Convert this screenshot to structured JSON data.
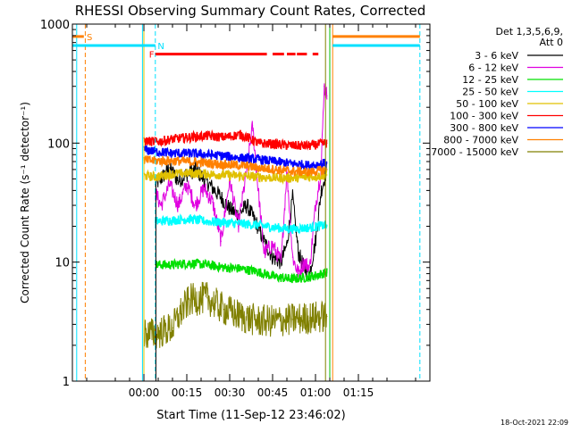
{
  "chart_data": {
    "type": "line",
    "title": "RHESSI Observing Summary Count Rates, Corrected",
    "xlabel": "Start Time (11-Sep-12 23:46:02)",
    "ylabel": "Corrected Count Rate (s⁻¹ detector⁻¹)",
    "yscale": "log",
    "ylim": [
      1,
      1000
    ],
    "xlim": [
      -25,
      100
    ],
    "x_unit": "minutes from 00:00 UT (12-Sep-12)",
    "x_ticks": [
      {
        "value": 0,
        "label": "00:00"
      },
      {
        "value": 15,
        "label": "00:15"
      },
      {
        "value": 30,
        "label": "00:30"
      },
      {
        "value": 45,
        "label": "00:45"
      },
      {
        "value": 60,
        "label": "01:00"
      },
      {
        "value": 75,
        "label": "01:15"
      }
    ],
    "y_ticks": [
      {
        "value": 1,
        "label": "1"
      },
      {
        "value": 10,
        "label": "10"
      },
      {
        "value": 100,
        "label": "100"
      },
      {
        "value": 1000,
        "label": "1000"
      }
    ],
    "legend_header": [
      "Det 1,3,5,6,9,",
      "Att 0"
    ],
    "legend_position": "right",
    "footer_date": "18-Oct-2021 22:09",
    "flags": [
      {
        "label": "S",
        "color": "#ff8000"
      },
      {
        "label": "N",
        "color": "#00e0ff"
      },
      {
        "label": "F",
        "color": "#ff0000"
      }
    ],
    "series": [
      {
        "name": "3 - 6 keV",
        "color": "#000000",
        "x": [
          4,
          6,
          9,
          12,
          15,
          18,
          21,
          24,
          27,
          30,
          33,
          36,
          39,
          42,
          45,
          48,
          50,
          52,
          54,
          56,
          58,
          60,
          62,
          64
        ],
        "y": [
          45,
          50,
          62,
          48,
          55,
          60,
          50,
          42,
          35,
          28,
          25,
          30,
          22,
          15,
          11,
          10,
          14,
          35,
          12,
          9,
          8,
          15,
          40,
          60
        ]
      },
      {
        "name": "6 - 12 keV",
        "color": "#e000e0",
        "x": [
          4,
          6,
          9,
          12,
          15,
          18,
          21,
          24,
          27,
          30,
          33,
          36,
          38,
          40,
          42,
          45,
          48,
          50,
          52,
          54,
          56,
          58,
          60,
          62,
          63,
          64
        ],
        "y": [
          38,
          30,
          45,
          30,
          45,
          30,
          42,
          32,
          15,
          50,
          20,
          60,
          140,
          40,
          12,
          14,
          10,
          60,
          11,
          8,
          10,
          9,
          30,
          60,
          300,
          250
        ]
      },
      {
        "name": "12 - 25 keV",
        "color": "#00e000",
        "x": [
          4,
          10,
          16,
          22,
          28,
          34,
          40,
          46,
          52,
          58,
          64
        ],
        "y": [
          9.5,
          9.5,
          9.8,
          9.5,
          9.0,
          8.8,
          8.3,
          7.5,
          7.2,
          7.5,
          8.2
        ]
      },
      {
        "name": "25 - 50 keV",
        "color": "#00ffff",
        "x": [
          4,
          10,
          16,
          22,
          28,
          34,
          40,
          46,
          52,
          58,
          64
        ],
        "y": [
          22,
          22.5,
          23,
          22,
          21.5,
          21,
          20.5,
          19.5,
          19,
          19.5,
          20.5
        ]
      },
      {
        "name": "50 - 100 keV",
        "color": "#e0c000",
        "x": [
          0,
          4,
          10,
          16,
          22,
          28,
          34,
          40,
          46,
          52,
          58,
          64
        ],
        "y": [
          53,
          52,
          55,
          56,
          55,
          54,
          53,
          52,
          51,
          51,
          52,
          54
        ]
      },
      {
        "name": "100 - 300 keV",
        "color": "#ff0000",
        "x": [
          0,
          4,
          10,
          16,
          22,
          28,
          34,
          40,
          46,
          52,
          58,
          64
        ],
        "y": [
          105,
          102,
          108,
          112,
          115,
          112,
          118,
          100,
          98,
          95,
          95,
          100
        ]
      },
      {
        "name": "300 - 800 keV",
        "color": "#0000ff",
        "x": [
          0,
          4,
          10,
          16,
          22,
          28,
          34,
          40,
          46,
          52,
          58,
          64
        ],
        "y": [
          88,
          85,
          82,
          82,
          80,
          78,
          75,
          73,
          70,
          67,
          65,
          68
        ]
      },
      {
        "name": "800 - 7000 keV",
        "color": "#ff8000",
        "x": [
          0,
          4,
          10,
          16,
          22,
          28,
          34,
          40,
          46,
          52,
          58,
          64
        ],
        "y": [
          72,
          71,
          71,
          70,
          68,
          66,
          65,
          62,
          60,
          58,
          57,
          60
        ]
      },
      {
        "name": "7000 - 15000 keV",
        "color": "#808000",
        "x": [
          0,
          4,
          10,
          13,
          16,
          22,
          28,
          34,
          40,
          46,
          52,
          58,
          64
        ],
        "y": [
          2.5,
          2.5,
          2.8,
          3.8,
          4.8,
          5.0,
          4.0,
          3.5,
          3.2,
          3.2,
          3.3,
          3.4,
          3.5
        ]
      }
    ]
  }
}
